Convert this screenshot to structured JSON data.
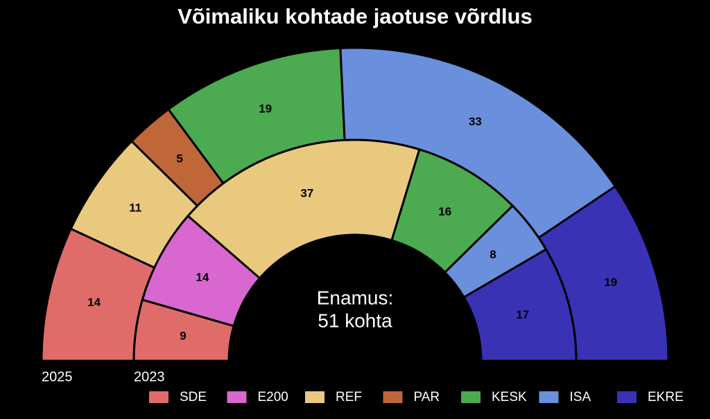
{
  "chart_data": {
    "type": "donut",
    "title": "Võimaliku kohtade jaotuse võrdlus",
    "center_label": [
      "Enamus:",
      "51 kohta"
    ],
    "categories": [
      "SDE",
      "E200",
      "REF",
      "PAR",
      "KESK",
      "ISA",
      "EKRE"
    ],
    "colors": [
      "#e06c6a",
      "#d867d0",
      "#e8c97e",
      "#c0673a",
      "#4caa50",
      "#6a8fdc",
      "#3a32b5"
    ],
    "series": [
      {
        "name": "2025",
        "values": [
          14,
          null,
          11,
          5,
          19,
          33,
          19
        ]
      },
      {
        "name": "2023",
        "values": [
          9,
          14,
          37,
          null,
          16,
          8,
          17
        ]
      }
    ]
  }
}
